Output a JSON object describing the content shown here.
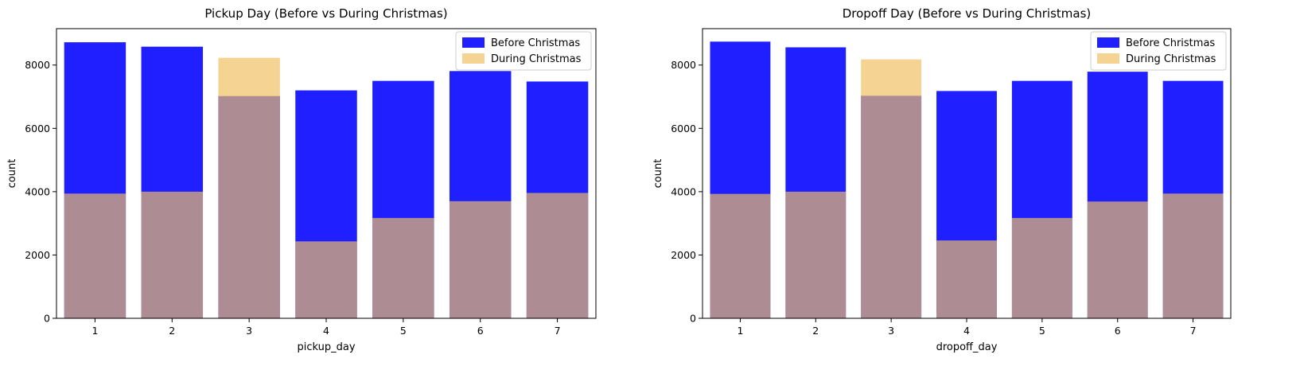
{
  "chart_data": [
    {
      "type": "bar",
      "title": "Pickup Day (Before vs During Christmas)",
      "xlabel": "pickup_day",
      "ylabel": "count",
      "categories": [
        "1",
        "2",
        "3",
        "4",
        "5",
        "6",
        "7"
      ],
      "yticks": [
        "0",
        "2000",
        "4000",
        "6000",
        "8000"
      ],
      "ylim": [
        0,
        9150
      ],
      "legend_position": "top-right",
      "series": [
        {
          "name": "Before Christmas",
          "color": "#0000ff",
          "values": [
            8720,
            8580,
            7020,
            7200,
            7500,
            7810,
            7480
          ]
        },
        {
          "name": "During Christmas",
          "color": "#f0c060",
          "values": [
            3940,
            4000,
            8230,
            2430,
            3170,
            3700,
            3960
          ]
        }
      ]
    },
    {
      "type": "bar",
      "title": "Dropoff Day (Before vs During Christmas)",
      "xlabel": "dropoff_day",
      "ylabel": "count",
      "categories": [
        "1",
        "2",
        "3",
        "4",
        "5",
        "6",
        "7"
      ],
      "yticks": [
        "0",
        "2000",
        "4000",
        "6000",
        "8000"
      ],
      "ylim": [
        0,
        9150
      ],
      "legend_position": "top-right",
      "series": [
        {
          "name": "Before Christmas",
          "color": "#0000ff",
          "values": [
            8740,
            8560,
            7030,
            7180,
            7500,
            7790,
            7500
          ]
        },
        {
          "name": "During Christmas",
          "color": "#f0c060",
          "values": [
            3930,
            4000,
            8180,
            2460,
            3170,
            3690,
            3940
          ]
        }
      ]
    }
  ]
}
